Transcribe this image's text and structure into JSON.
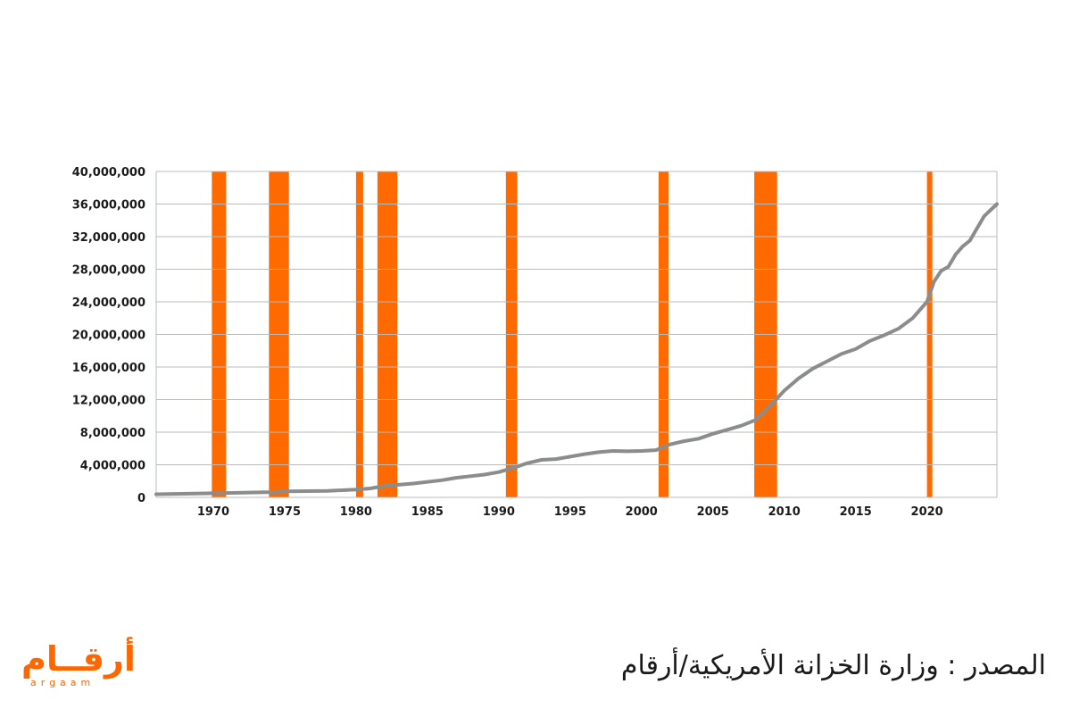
{
  "chart_data": {
    "type": "line",
    "title": "",
    "xlabel": "",
    "ylabel": "",
    "xlim": [
      1966,
      2024.9
    ],
    "ylim": [
      0,
      40000000
    ],
    "y_ticks": [
      0,
      4000000,
      8000000,
      12000000,
      16000000,
      20000000,
      24000000,
      28000000,
      32000000,
      36000000,
      40000000
    ],
    "y_tick_labels": [
      "0",
      "4,000,000",
      "8,000,000",
      "12,000,000",
      "16,000,000",
      "20,000,000",
      "24,000,000",
      "28,000,000",
      "32,000,000",
      "36,000,000",
      "40,000,000"
    ],
    "x_ticks": [
      1970,
      1975,
      1980,
      1985,
      1990,
      1995,
      2000,
      2005,
      2010,
      2015,
      2020
    ],
    "grid": true,
    "line_color": "#8a8d8c",
    "band_color": "#ff6a00",
    "recession_bands": [
      [
        1969.9,
        1970.9
      ],
      [
        1973.9,
        1975.3
      ],
      [
        1980.0,
        1980.5
      ],
      [
        1981.5,
        1982.9
      ],
      [
        1990.5,
        1991.3
      ],
      [
        2001.2,
        2001.9
      ],
      [
        2007.9,
        2009.5
      ],
      [
        2020.0,
        2020.3
      ]
    ],
    "series": [
      {
        "x": [
          1966,
          1970,
          1974,
          1975,
          1978,
          1980,
          1981,
          1982,
          1984,
          1986,
          1987,
          1988,
          1989,
          1990,
          1991,
          1992,
          1993,
          1994,
          1995,
          1996,
          1997,
          1998,
          1999,
          2000,
          2001,
          2002,
          2003,
          2004,
          2005,
          2006,
          2007,
          2008,
          2009,
          2010,
          2011,
          2012,
          2013,
          2014,
          2015,
          2016,
          2017,
          2018,
          2019,
          2020,
          2020.5,
          2021,
          2021.5,
          2022,
          2022.5,
          2023,
          2023.5,
          2024,
          2024.9
        ],
        "values": [
          380000,
          500000,
          650000,
          750000,
          800000,
          950000,
          1100000,
          1400000,
          1700000,
          2100000,
          2400000,
          2600000,
          2800000,
          3100000,
          3600000,
          4200000,
          4600000,
          4700000,
          5000000,
          5300000,
          5550000,
          5700000,
          5650000,
          5700000,
          5800000,
          6500000,
          6900000,
          7200000,
          7800000,
          8300000,
          8800000,
          9500000,
          11200000,
          13100000,
          14600000,
          15800000,
          16700000,
          17600000,
          18200000,
          19200000,
          19900000,
          20700000,
          22000000,
          24000000,
          26500000,
          27800000,
          28300000,
          29800000,
          30800000,
          31500000,
          33000000,
          34500000,
          36000000
        ]
      }
    ]
  },
  "source_note": "المصدر : وزارة الخزانة الأمريكية/أرقام",
  "logo": {
    "text_ar": "أرقــام",
    "text_en": "argaam",
    "color": "#ff6600"
  }
}
